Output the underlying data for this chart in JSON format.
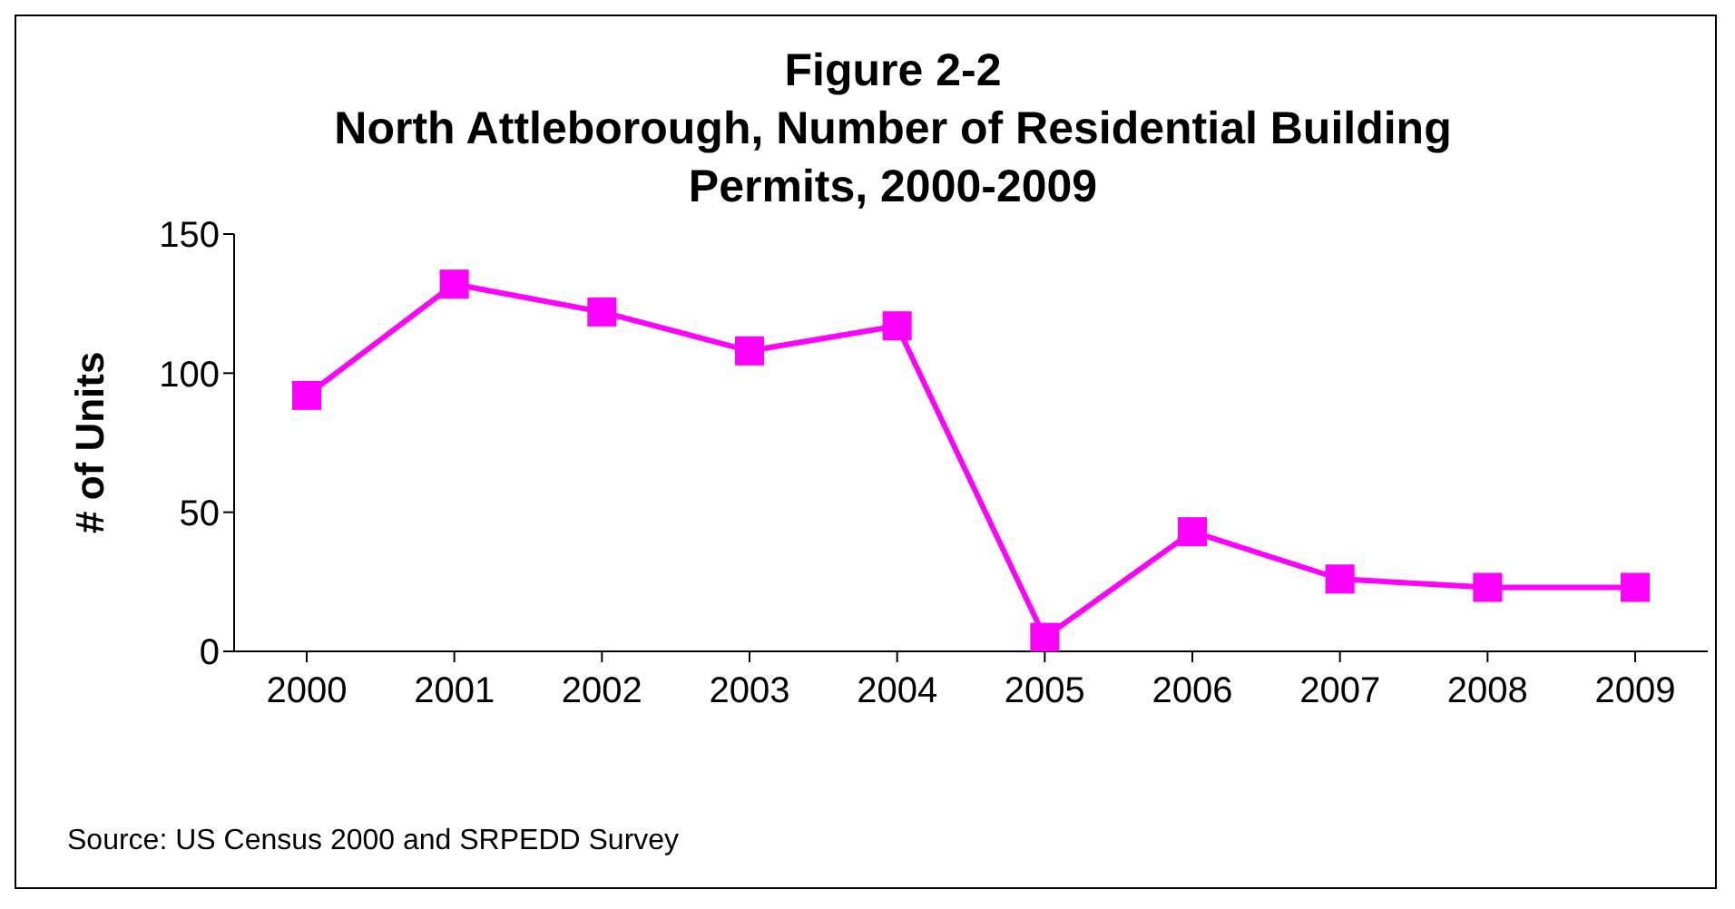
{
  "chart_data": {
    "type": "line",
    "title": "Figure 2-2\nNorth Attleborough, Number of Residential Building\nPermits, 2000-2009",
    "ylabel": "# of Units",
    "categories": [
      "2000",
      "2001",
      "2002",
      "2003",
      "2004",
      "2005",
      "2006",
      "2007",
      "2008",
      "2009"
    ],
    "series": [
      {
        "color": "#ff00ff",
        "values": [
          92,
          132,
          122,
          108,
          117,
          5,
          43,
          26,
          23,
          23
        ]
      }
    ],
    "ylim": [
      0,
      150
    ],
    "yticks": [
      0,
      50,
      100,
      150
    ],
    "grid": false,
    "legend": false,
    "marker": "square",
    "line_style": "solid",
    "annotations": [
      "Source: US Census 2000 and SRPEDD Survey"
    ]
  }
}
